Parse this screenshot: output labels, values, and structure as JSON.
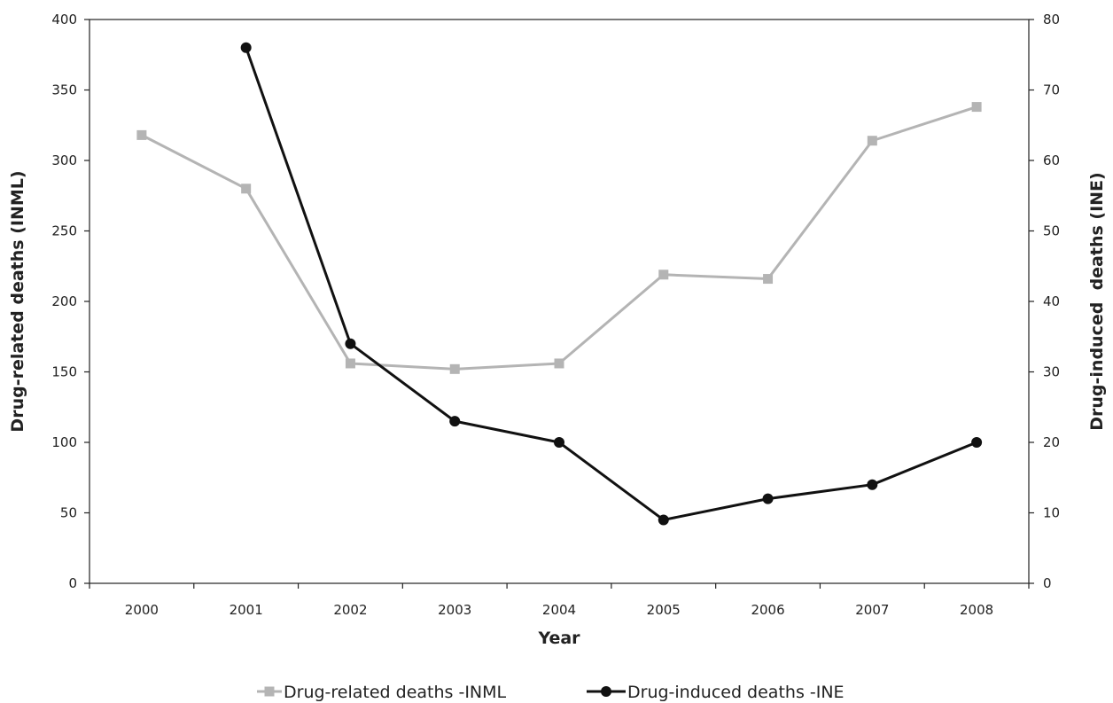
{
  "chart_data": {
    "type": "line",
    "categories": [
      "2000",
      "2001",
      "2002",
      "2003",
      "2004",
      "2005",
      "2006",
      "2007",
      "2008"
    ],
    "xlabel": "Year",
    "ylabel_left": "Drug-related deaths (INML)",
    "ylabel_right": "Drug-induced  deaths (INE)",
    "ylim_left": [
      0,
      400
    ],
    "yticks_left": [
      0,
      50,
      100,
      150,
      200,
      250,
      300,
      350,
      400
    ],
    "ylim_right": [
      0,
      80
    ],
    "yticks_right": [
      0,
      10,
      20,
      30,
      40,
      50,
      60,
      70,
      80
    ],
    "grid": false,
    "legend_position": "bottom",
    "series": [
      {
        "name": "Drug-related deaths -INML",
        "axis": "left",
        "marker": "square",
        "color": "#b4b4b4",
        "values": [
          318,
          280,
          156,
          152,
          156,
          219,
          216,
          314,
          338
        ]
      },
      {
        "name": "Drug-induced deaths -INE",
        "axis": "right",
        "marker": "circle",
        "color": "#111111",
        "values": [
          null,
          76,
          34,
          23,
          20,
          9,
          12,
          14,
          20
        ]
      }
    ]
  }
}
